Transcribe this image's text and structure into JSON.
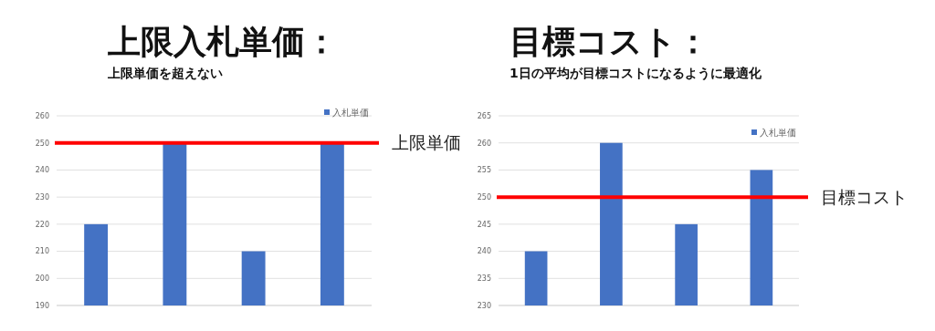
{
  "chart_data": [
    {
      "type": "bar",
      "title": "上限入札単価：",
      "subtitle": "上限単価を超えない",
      "categories": [
        null,
        null,
        null,
        null
      ],
      "series": [
        {
          "name": "入札単価",
          "color": "#4472c4",
          "values": [
            220,
            250,
            210,
            250
          ]
        }
      ],
      "ylim": [
        190,
        260
      ],
      "yticks": [
        190,
        200,
        210,
        220,
        230,
        240,
        250,
        260
      ],
      "grid": "y",
      "legend": "top right",
      "ref_lines": [
        {
          "axis": "y",
          "value": 250,
          "label": "上限単価",
          "color": "#ff0000"
        }
      ]
    },
    {
      "type": "bar",
      "title": "目標コスト：",
      "subtitle": "1日の平均が目標コストになるように最適化",
      "categories": [
        null,
        null,
        null,
        null
      ],
      "series": [
        {
          "name": "入札単価",
          "color": "#4472c4",
          "values": [
            240,
            260,
            245,
            255
          ]
        }
      ],
      "ylim": [
        230,
        265
      ],
      "yticks": [
        230,
        235,
        240,
        245,
        250,
        255,
        260,
        265
      ],
      "grid": "y",
      "legend": "top right",
      "ref_lines": [
        {
          "axis": "y",
          "value": 250,
          "label": "目標コスト",
          "color": "#ff0000"
        }
      ]
    }
  ]
}
